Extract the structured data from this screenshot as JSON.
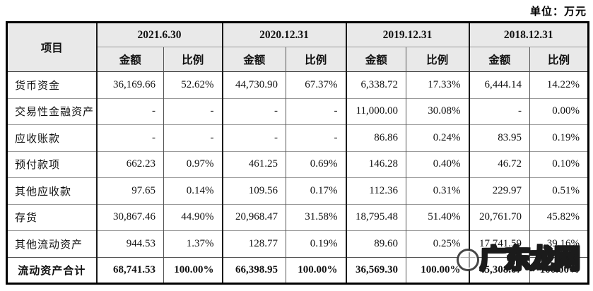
{
  "unit_label": "单位：万元",
  "watermark": {
    "text": "广东龙网"
  },
  "colors": {
    "header_bg": "#e9e9e9",
    "border_outer": "#000000",
    "border_group": "#1a1a1a",
    "border_row": "#9b9b9b"
  },
  "table": {
    "item_header": "项目",
    "sub_headers": {
      "amount": "金额",
      "ratio": "比例"
    },
    "periods": [
      "2021.6.30",
      "2020.12.31",
      "2019.12.31",
      "2018.12.31"
    ],
    "rows": [
      {
        "label": "货币资金",
        "total": false,
        "values": [
          "36,169.66",
          "52.62%",
          "44,730.90",
          "67.37%",
          "6,338.72",
          "17.33%",
          "6,444.14",
          "14.22%"
        ]
      },
      {
        "label": "交易性金融资产",
        "total": false,
        "values": [
          "-",
          "-",
          "-",
          "-",
          "11,000.00",
          "30.08%",
          "-",
          "0.00%"
        ]
      },
      {
        "label": "应收账款",
        "total": false,
        "values": [
          "-",
          "-",
          "-",
          "-",
          "86.86",
          "0.24%",
          "83.95",
          "0.19%"
        ]
      },
      {
        "label": "预付款项",
        "total": false,
        "values": [
          "662.23",
          "0.97%",
          "461.25",
          "0.69%",
          "146.28",
          "0.40%",
          "46.72",
          "0.10%"
        ]
      },
      {
        "label": "其他应收款",
        "total": false,
        "values": [
          "97.65",
          "0.14%",
          "109.56",
          "0.17%",
          "112.36",
          "0.31%",
          "229.97",
          "0.51%"
        ]
      },
      {
        "label": "存货",
        "total": false,
        "values": [
          "30,867.46",
          "44.90%",
          "20,968.47",
          "31.58%",
          "18,795.48",
          "51.40%",
          "20,761.70",
          "45.82%"
        ]
      },
      {
        "label": "其他流动资产",
        "total": false,
        "values": [
          "944.53",
          "1.37%",
          "128.77",
          "0.19%",
          "89.60",
          "0.25%",
          "17,741.59",
          "39.16%"
        ]
      },
      {
        "label": "流动资产合计",
        "total": true,
        "values": [
          "68,741.53",
          "100.00%",
          "66,398.95",
          "100.00%",
          "36,569.30",
          "100.00%",
          "45,308.07",
          "100.00%"
        ]
      }
    ]
  }
}
